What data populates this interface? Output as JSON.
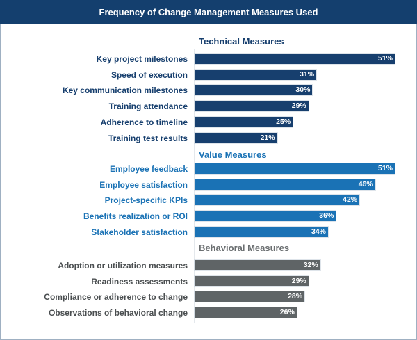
{
  "chart_data": {
    "type": "bar",
    "orientation": "horizontal",
    "title": "Frequency of Change Management Measures Used",
    "value_format": "percent",
    "xlim": [
      0,
      51
    ],
    "grid": false,
    "groups": [
      {
        "name": "Technical Measures",
        "color": "#173f6e",
        "categories": [
          "Key project milestones",
          "Speed of execution",
          "Key communication milestones",
          "Training attendance",
          "Adherence to timeline",
          "Training test results"
        ],
        "values": [
          51,
          31,
          30,
          29,
          25,
          21
        ]
      },
      {
        "name": "Value Measures",
        "color": "#1a72b5",
        "categories": [
          "Employee feedback",
          "Employee satisfaction",
          "Project-specific KPIs",
          "Benefits realization or ROI",
          "Stakeholder satisfaction"
        ],
        "values": [
          51,
          46,
          42,
          36,
          34
        ]
      },
      {
        "name": "Behavioral Measures",
        "color": "#5f6466",
        "categories": [
          "Adoption or utilization measures",
          "Readiness assessments",
          "Compliance or adherence to change",
          "Observations of behavioral change"
        ],
        "values": [
          32,
          29,
          28,
          26
        ]
      }
    ]
  }
}
